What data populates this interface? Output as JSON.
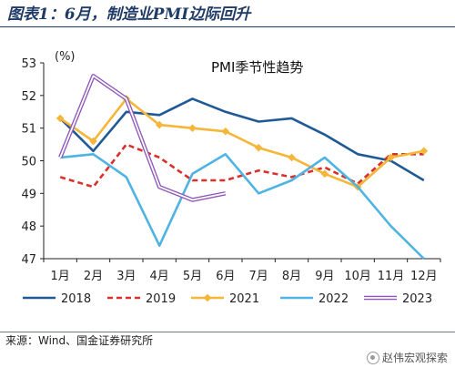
{
  "header": {
    "title": "图表1：6月，制造业PMI边际回升"
  },
  "footer": {
    "source": "来源：Wind、国金证券研究所",
    "brand": "赵伟宏观探索"
  },
  "colors": {
    "header": "#1f3b66",
    "s2018": "#1f5a96",
    "s2019": "#d9302c",
    "s2021": "#f5b63a",
    "s2022": "#4fb3e3",
    "s2023": "#8e58b8"
  },
  "chart_data": {
    "type": "line",
    "title": "PMI季节性趋势",
    "ylabel": "(%)",
    "xlabel": "",
    "ylim": [
      47,
      53
    ],
    "yticks": [
      47,
      48,
      49,
      50,
      51,
      52,
      53
    ],
    "grid": false,
    "legend": "bottom",
    "categories": [
      "1月",
      "2月",
      "3月",
      "4月",
      "5月",
      "6月",
      "7月",
      "8月",
      "9月",
      "10月",
      "11月",
      "12月"
    ],
    "series": [
      {
        "name": "2018",
        "style": "solid",
        "marker": "none",
        "color": "#1f5a96",
        "values": [
          51.3,
          50.3,
          51.5,
          51.4,
          51.9,
          51.5,
          51.2,
          51.3,
          50.8,
          50.2,
          50.0,
          49.4
        ]
      },
      {
        "name": "2019",
        "style": "dashed",
        "marker": "none",
        "color": "#d9302c",
        "values": [
          49.5,
          49.2,
          50.5,
          50.1,
          49.4,
          49.4,
          49.7,
          49.5,
          49.8,
          49.3,
          50.2,
          50.2
        ]
      },
      {
        "name": "2021",
        "style": "solid",
        "marker": "diamond",
        "color": "#f5b63a",
        "values": [
          51.3,
          50.6,
          51.9,
          51.1,
          51.0,
          50.9,
          50.4,
          50.1,
          49.6,
          49.2,
          50.1,
          50.3
        ]
      },
      {
        "name": "2022",
        "style": "solid",
        "marker": "none",
        "color": "#4fb3e3",
        "values": [
          50.1,
          50.2,
          49.5,
          47.4,
          49.6,
          50.2,
          49.0,
          49.4,
          50.1,
          49.2,
          48.0,
          47.0
        ]
      },
      {
        "name": "2023",
        "style": "double",
        "marker": "none",
        "color": "#8e58b8",
        "values": [
          50.1,
          52.6,
          51.9,
          49.2,
          48.8,
          49.0,
          null,
          null,
          null,
          null,
          null,
          null
        ]
      }
    ]
  }
}
